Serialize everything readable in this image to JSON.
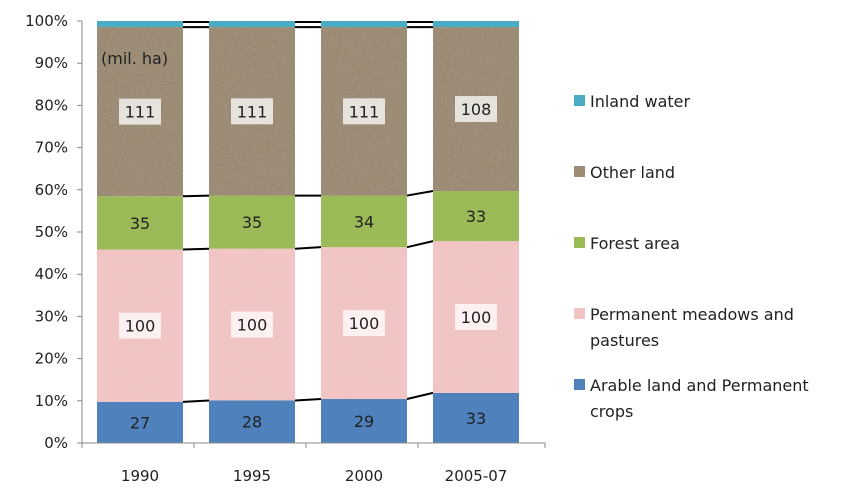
{
  "chart_data": {
    "type": "bar",
    "stacked": "percent",
    "categories": [
      "1990",
      "1995",
      "2000",
      "2005-07"
    ],
    "annotation": "(mil. ha)",
    "ylim": [
      0,
      100
    ],
    "y_ticks": [
      "0%",
      "10%",
      "20%",
      "30%",
      "40%",
      "50%",
      "60%",
      "70%",
      "80%",
      "90%",
      "100%"
    ],
    "legend_placement": "right",
    "series": [
      {
        "name": "Arable land and Permanent crops",
        "color": "#4f81bd",
        "pattern": "solid",
        "values": [
          27,
          28,
          29,
          33
        ],
        "labels": [
          "27",
          "28",
          "29",
          "33"
        ]
      },
      {
        "name": "Permanent meadows and pastures",
        "color": "#f2c4c4",
        "pattern": "speckle",
        "values": [
          100,
          100,
          100,
          100
        ],
        "labels": [
          "100",
          "100",
          "100",
          "100"
        ]
      },
      {
        "name": "Forest area",
        "color": "#9bbb59",
        "pattern": "solid",
        "values": [
          35,
          35,
          34,
          33
        ],
        "labels": [
          "35",
          "35",
          "34",
          "33"
        ]
      },
      {
        "name": "Other land",
        "color": "#a0907a",
        "pattern": "granite",
        "values": [
          111,
          111,
          111,
          108
        ],
        "labels": [
          "111",
          "111",
          "111",
          "108"
        ]
      },
      {
        "name": "Inland water",
        "color": "#4bacc6",
        "pattern": "solid",
        "values": [
          4,
          4,
          4,
          4
        ],
        "labels": [
          "",
          "",
          "",
          ""
        ]
      }
    ]
  }
}
